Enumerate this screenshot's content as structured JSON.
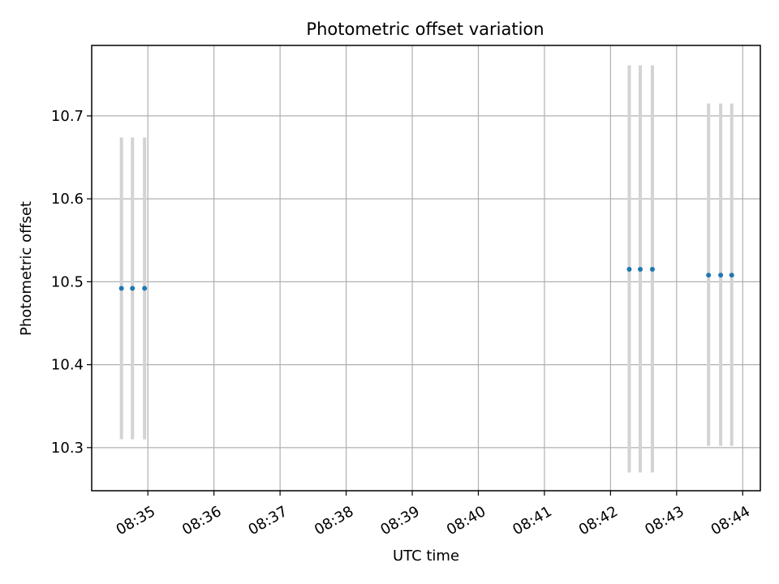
{
  "chart_data": {
    "type": "scatter",
    "title": "Photometric offset variation",
    "xlabel": "UTC time",
    "ylabel": "Photometric offset",
    "x_tick_labels": [
      "08:35",
      "08:36",
      "08:37",
      "08:38",
      "08:39",
      "08:40",
      "08:41",
      "08:42",
      "08:43",
      "08:44"
    ],
    "y_ticks": [
      10.3,
      10.4,
      10.5,
      10.6,
      10.7
    ],
    "y_tick_labels": [
      "10.3",
      "10.4",
      "10.5",
      "10.6",
      "10.7"
    ],
    "xlim": [
      "08:34:09",
      "08:44:16"
    ],
    "ylim": [
      10.248,
      10.785
    ],
    "grid": true,
    "colors": {
      "point": "#1f77b4",
      "errorbar": "#d3d3d3",
      "grid": "#b0b0b0"
    },
    "series": [
      {
        "points": [
          {
            "x": "08:34:36",
            "y": 10.492,
            "ymin": 10.31,
            "ymax": 10.674
          },
          {
            "x": "08:34:46",
            "y": 10.492,
            "ymin": 10.31,
            "ymax": 10.674
          },
          {
            "x": "08:34:57",
            "y": 10.492,
            "ymin": 10.31,
            "ymax": 10.674
          },
          {
            "x": "08:42:17",
            "y": 10.515,
            "ymin": 10.27,
            "ymax": 10.761
          },
          {
            "x": "08:42:27",
            "y": 10.515,
            "ymin": 10.27,
            "ymax": 10.761
          },
          {
            "x": "08:42:38",
            "y": 10.515,
            "ymin": 10.27,
            "ymax": 10.761
          },
          {
            "x": "08:43:29",
            "y": 10.508,
            "ymin": 10.302,
            "ymax": 10.715
          },
          {
            "x": "08:43:40",
            "y": 10.508,
            "ymin": 10.302,
            "ymax": 10.715
          },
          {
            "x": "08:43:50",
            "y": 10.508,
            "ymin": 10.302,
            "ymax": 10.715
          }
        ]
      }
    ]
  }
}
